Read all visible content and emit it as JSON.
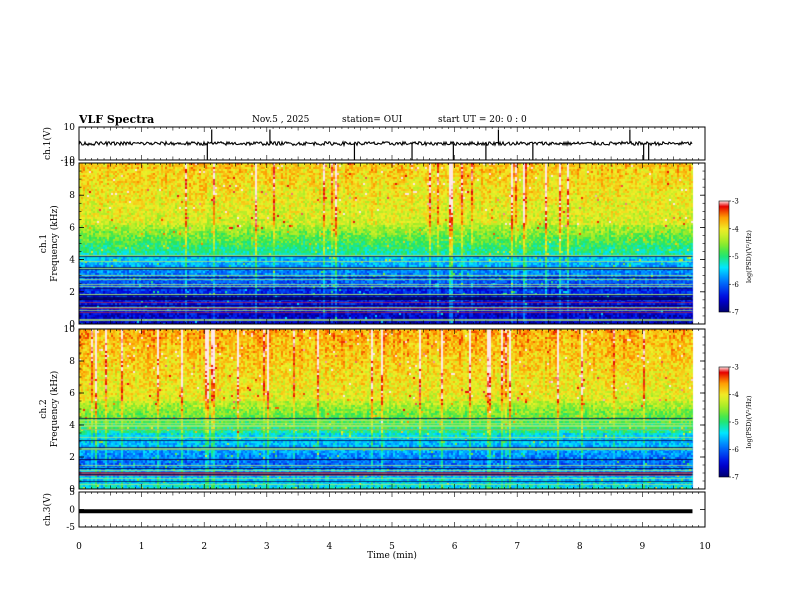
{
  "header": {
    "title": "VLF Spectra",
    "date": "Nov.5 , 2025",
    "station": "station= OUI",
    "start_ut": "start UT = 20: 0 : 0"
  },
  "chart_data": [
    {
      "type": "line",
      "id": "ch1-waveform",
      "ylabel": "ch.1(V)",
      "ylim": [
        -10,
        10
      ],
      "yticks": [
        "10",
        "-10"
      ],
      "xlim": [
        0,
        9.8
      ],
      "baseline": 0,
      "spikes_min": [
        2.05,
        2.12,
        3.05,
        4.4,
        5.32,
        5.98,
        6.5,
        6.7,
        7.25,
        8.8,
        9.02,
        9.1
      ]
    },
    {
      "type": "heatmap",
      "id": "ch1-spectrogram",
      "ylabel": "ch.1\nFrequency (kHz)",
      "yticks": [
        "0",
        "2",
        "4",
        "6",
        "8",
        "10"
      ],
      "ylim": [
        0,
        10
      ],
      "xlim": [
        0,
        9.8
      ],
      "colorbar": {
        "label": "log(PSD)(V²/Hz)",
        "ticks": [
          "-3",
          "-4",
          "-5",
          "-6",
          "-7"
        ],
        "range": [
          -7,
          -3
        ]
      }
    },
    {
      "type": "heatmap",
      "id": "ch2-spectrogram",
      "ylabel": "ch.2\nFrequency (kHz)",
      "yticks": [
        "0",
        "2",
        "4",
        "6",
        "8",
        "10"
      ],
      "ylim": [
        0,
        10
      ],
      "xlim": [
        0,
        9.8
      ],
      "colorbar": {
        "label": "log(PSD)(V²/Hz)",
        "ticks": [
          "-3",
          "-4",
          "-5",
          "-6",
          "-7"
        ],
        "range": [
          -7,
          -3
        ]
      }
    },
    {
      "type": "line",
      "id": "ch3-waveform",
      "ylabel": "ch.3(V)",
      "ylim": [
        -5,
        5
      ],
      "yticks": [
        "5",
        "0",
        "-5"
      ],
      "xlim": [
        0,
        9.8
      ],
      "baseline": -0.5
    }
  ],
  "xaxis": {
    "label": "Time (min)",
    "ticks": [
      "0",
      "1",
      "2",
      "3",
      "4",
      "5",
      "6",
      "7",
      "8",
      "9",
      "10"
    ],
    "range": [
      0,
      10
    ]
  }
}
